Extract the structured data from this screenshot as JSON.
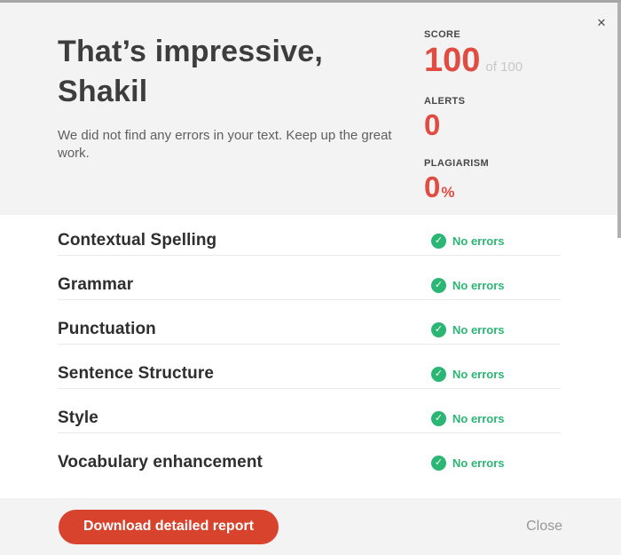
{
  "modal": {
    "close_icon": "✕",
    "header": {
      "title": "That’s impressive, Shakil",
      "subtitle": "We did not find any errors in your text. Keep up the great work.",
      "stats": [
        {
          "label": "SCORE",
          "value": "100",
          "suffix": "of 100"
        },
        {
          "label": "ALERTS",
          "value": "0",
          "suffix": ""
        },
        {
          "label": "PLAGIARISM",
          "value": "0",
          "suffix": "%"
        }
      ]
    },
    "categories": [
      {
        "label": "Contextual Spelling",
        "status": "No errors"
      },
      {
        "label": "Grammar",
        "status": "No errors"
      },
      {
        "label": "Punctuation",
        "status": "No errors"
      },
      {
        "label": "Sentence Structure",
        "status": "No errors"
      },
      {
        "label": "Style",
        "status": "No errors"
      },
      {
        "label": "Vocabulary enhancement",
        "status": "No errors"
      }
    ],
    "check_glyph": "✓",
    "footer": {
      "download_label": "Download detailed report",
      "close_label": "Close"
    },
    "colors": {
      "accent_red": "#e04b42",
      "button_red": "#d8432e",
      "success_green": "#2bb673",
      "muted_gray": "#c7c7c7",
      "panel_gray": "#f4f3f3"
    }
  }
}
